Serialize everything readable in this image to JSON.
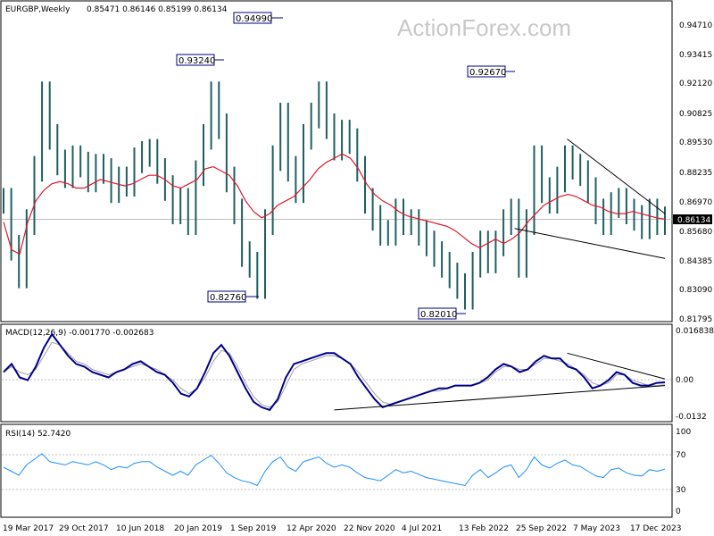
{
  "chart_data": [
    {
      "type": "candlestick",
      "title": "EURGBP,Weekly",
      "ohlc_readout": "0.85471 0.86146 0.85199 0.86134",
      "watermark": "ActionForex.com",
      "ylim": [
        0.815,
        0.955
      ],
      "y_ticks": [
        "0.94710",
        "0.93415",
        "0.92120",
        "0.90825",
        "0.89530",
        "0.88235",
        "0.86970",
        "0.85680",
        "0.84385",
        "0.83090",
        "0.81795"
      ],
      "current_price_label": "0.86134",
      "x_tick_labels": [
        "19 Mar 2017",
        "29 Oct 2017",
        "10 Jun 2018",
        "20 Jan 2019",
        "1 Sep 2019",
        "12 Apr 2020",
        "22 Nov 2020",
        "4 Jul 2021",
        "13 Feb 2022",
        "25 Sep 2022",
        "7 May 2023",
        "17 Dec 2023"
      ],
      "close_series": [
        0.87,
        0.848,
        0.835,
        0.86,
        0.885,
        0.92,
        0.9,
        0.888,
        0.882,
        0.89,
        0.887,
        0.88,
        0.886,
        0.884,
        0.875,
        0.88,
        0.878,
        0.889,
        0.892,
        0.893,
        0.884,
        0.876,
        0.865,
        0.87,
        0.86,
        0.883,
        0.9,
        0.92,
        0.905,
        0.88,
        0.865,
        0.845,
        0.84,
        0.83,
        0.86,
        0.89,
        0.91,
        0.885,
        0.875,
        0.9,
        0.91,
        0.92,
        0.905,
        0.895,
        0.902,
        0.898,
        0.885,
        0.87,
        0.862,
        0.855,
        0.855,
        0.865,
        0.86,
        0.86,
        0.855,
        0.85,
        0.845,
        0.84,
        0.835,
        0.83,
        0.825,
        0.84,
        0.85,
        0.842,
        0.85,
        0.86,
        0.865,
        0.84,
        0.86,
        0.89,
        0.875,
        0.87,
        0.88,
        0.89,
        0.886,
        0.883,
        0.875,
        0.865,
        0.86,
        0.868,
        0.87,
        0.865,
        0.862,
        0.858,
        0.865,
        0.86,
        0.8613
      ],
      "ma_series": [
        0.86,
        0.847,
        0.845,
        0.86,
        0.87,
        0.875,
        0.878,
        0.879,
        0.878,
        0.876,
        0.876,
        0.878,
        0.88,
        0.879,
        0.878,
        0.877,
        0.878,
        0.88,
        0.882,
        0.882,
        0.88,
        0.877,
        0.876,
        0.878,
        0.88,
        0.885,
        0.886,
        0.884,
        0.882,
        0.877,
        0.87,
        0.865,
        0.862,
        0.864,
        0.868,
        0.87,
        0.872,
        0.876,
        0.88,
        0.885,
        0.888,
        0.89,
        0.892,
        0.89,
        0.885,
        0.878,
        0.873,
        0.87,
        0.868,
        0.865,
        0.863,
        0.862,
        0.861,
        0.86,
        0.859,
        0.858,
        0.856,
        0.853,
        0.85,
        0.848,
        0.85,
        0.852,
        0.85,
        0.852,
        0.855,
        0.86,
        0.864,
        0.868,
        0.87,
        0.872,
        0.873,
        0.872,
        0.87,
        0.868,
        0.867,
        0.865,
        0.864,
        0.864,
        0.865,
        0.864,
        0.863,
        0.862,
        0.8614
      ],
      "last_close": 0.86134,
      "callouts": [
        "0.94990",
        "0.93240",
        "0.92670",
        "0.82760",
        "0.82010"
      ],
      "trendlines": [
        {
          "from": [
            75,
            0.899
          ],
          "to": [
            88,
            0.864
          ]
        },
        {
          "from": [
            68,
            0.857
          ],
          "to": [
            88,
            0.843
          ]
        }
      ]
    },
    {
      "type": "line",
      "title": "MACD(12,26,9)",
      "readout": "MACD(12,26,9) -0.001770 -0.002683",
      "ylim": [
        -0.015,
        0.018
      ],
      "y_ticks": [
        "0.016838",
        "0.00",
        "-0.0132"
      ],
      "series": [
        {
          "name": "MACD",
          "color": "#00008b",
          "values": [
            0.002,
            0.005,
            0.0,
            -0.001,
            0.004,
            0.011,
            0.016,
            0.012,
            0.008,
            0.005,
            0.004,
            0.002,
            0.001,
            0.0,
            0.002,
            0.003,
            0.005,
            0.006,
            0.004,
            0.002,
            0.001,
            -0.002,
            -0.006,
            -0.007,
            -0.004,
            0.002,
            0.009,
            0.012,
            0.008,
            0.002,
            -0.004,
            -0.009,
            -0.011,
            -0.012,
            -0.008,
            0.0,
            0.005,
            0.006,
            0.007,
            0.008,
            0.009,
            0.009,
            0.007,
            0.005,
            0.0,
            -0.004,
            -0.008,
            -0.011,
            -0.01,
            -0.009,
            -0.008,
            -0.007,
            -0.006,
            -0.005,
            -0.004,
            -0.004,
            -0.003,
            -0.003,
            -0.003,
            -0.002,
            0.0,
            0.003,
            0.005,
            0.004,
            0.002,
            0.003,
            0.006,
            0.008,
            0.007,
            0.007,
            0.004,
            0.003,
            0.0,
            -0.004,
            -0.003,
            -0.001,
            0.002,
            0.001,
            -0.002,
            -0.003,
            -0.003,
            -0.002,
            -0.0018
          ]
        },
        {
          "name": "Signal",
          "color": "#a0a0a0",
          "values": [
            0.002,
            0.004,
            0.002,
            0.001,
            0.003,
            0.008,
            0.013,
            0.012,
            0.009,
            0.006,
            0.005,
            0.003,
            0.002,
            0.001,
            0.002,
            0.003,
            0.004,
            0.005,
            0.004,
            0.003,
            0.001,
            -0.001,
            -0.004,
            -0.006,
            -0.004,
            0.0,
            0.006,
            0.01,
            0.009,
            0.004,
            -0.002,
            -0.007,
            -0.01,
            -0.011,
            -0.009,
            -0.003,
            0.003,
            0.005,
            0.006,
            0.007,
            0.008,
            0.008,
            0.007,
            0.005,
            0.002,
            -0.002,
            -0.006,
            -0.009,
            -0.01,
            -0.009,
            -0.008,
            -0.007,
            -0.006,
            -0.005,
            -0.005,
            -0.004,
            -0.003,
            -0.003,
            -0.003,
            -0.002,
            -0.001,
            0.002,
            0.004,
            0.004,
            0.003,
            0.003,
            0.005,
            0.007,
            0.007,
            0.006,
            0.005,
            0.003,
            0.001,
            -0.002,
            -0.003,
            -0.002,
            0.001,
            0.001,
            -0.001,
            -0.002,
            -0.003,
            -0.003,
            -0.0027
          ]
        }
      ],
      "trendlines": [
        {
          "from": [
            75,
            0.009
          ],
          "to": [
            88,
            -0.0005
          ]
        },
        {
          "from": [
            44,
            -0.012
          ],
          "to": [
            88,
            -0.003
          ]
        }
      ]
    },
    {
      "type": "line",
      "title": "RSI(14)",
      "readout": "RSI(14) 52.7420",
      "ylim": [
        0,
        100
      ],
      "y_ticks": [
        "100",
        "70",
        "30",
        "0"
      ],
      "levels": [
        70,
        30
      ],
      "series": [
        {
          "name": "RSI",
          "color": "#1e90ff",
          "values": [
            55,
            50,
            45,
            58,
            65,
            72,
            62,
            60,
            58,
            62,
            60,
            58,
            62,
            58,
            52,
            56,
            54,
            60,
            62,
            62,
            55,
            50,
            45,
            50,
            45,
            58,
            64,
            70,
            60,
            48,
            42,
            38,
            36,
            32,
            50,
            62,
            68,
            55,
            50,
            62,
            65,
            68,
            60,
            55,
            58,
            55,
            48,
            42,
            40,
            38,
            45,
            52,
            48,
            50,
            46,
            42,
            40,
            38,
            36,
            34,
            32,
            45,
            52,
            42,
            48,
            55,
            58,
            42,
            52,
            68,
            58,
            54,
            60,
            64,
            58,
            56,
            50,
            44,
            42,
            52,
            54,
            48,
            45,
            44,
            52,
            50,
            52.74
          ]
        }
      ]
    }
  ]
}
